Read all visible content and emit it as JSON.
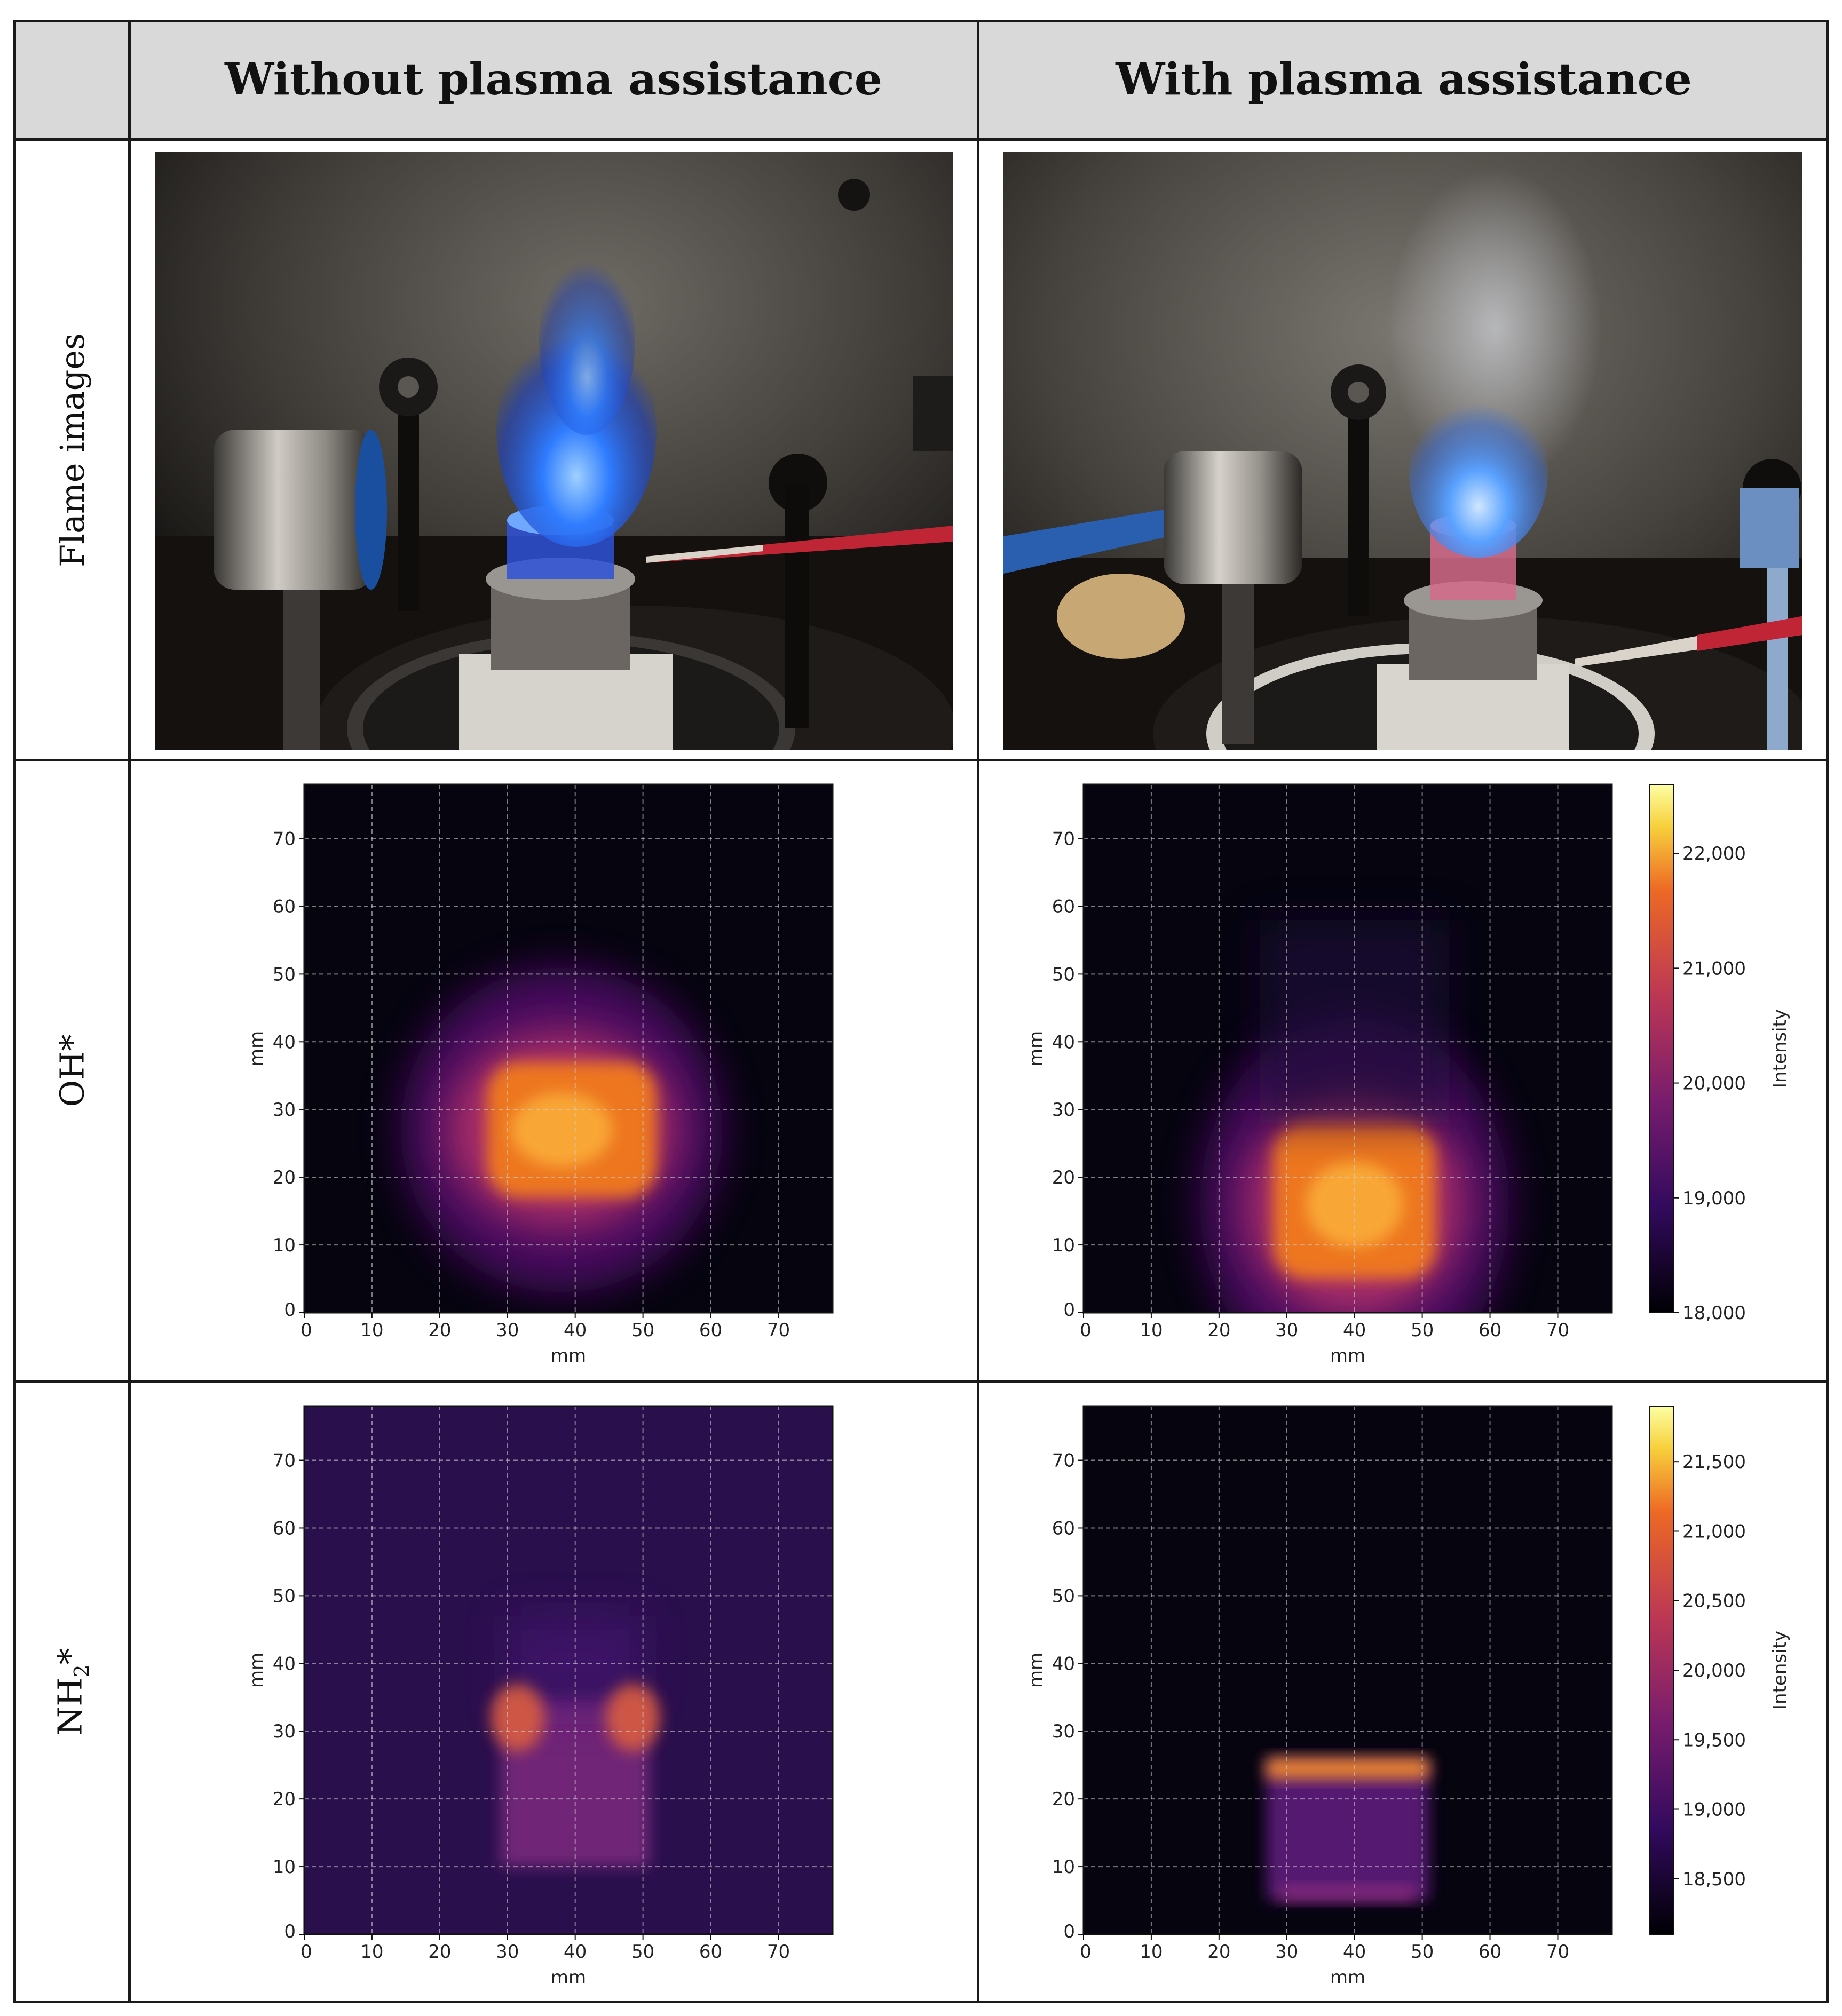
{
  "header": {
    "col_without": "Without plasma assistance",
    "col_with": "With plasma assistance"
  },
  "rows": {
    "flame": "Flame images",
    "oh": "OH*",
    "nh2_main": "NH",
    "nh2_sub": "2",
    "nh2_star": "*"
  },
  "plots": {
    "axis_label": "mm",
    "ticks": [
      "0",
      "10",
      "20",
      "30",
      "40",
      "50",
      "60",
      "70"
    ],
    "colorbar_label": "Intensity",
    "oh_colorbar_ticks": [
      "18,000",
      "19,000",
      "20,000",
      "21,000",
      "22,000"
    ],
    "nh2_colorbar_ticks": [
      "18,500",
      "19,000",
      "19,500",
      "20,000",
      "20,500",
      "21,000",
      "21,500"
    ]
  },
  "chart_data": [
    {
      "type": "heatmap",
      "panel": "OH* without plasma assistance",
      "xlabel": "mm",
      "ylabel": "mm",
      "xlim": [
        0,
        78
      ],
      "ylim": [
        0,
        78
      ],
      "grid": true,
      "emission_center_mm": [
        38,
        27
      ],
      "emission_extent_mm": {
        "x": [
          27,
          52
        ],
        "y": [
          17,
          37
        ]
      }
    },
    {
      "type": "heatmap",
      "panel": "OH* with plasma assistance",
      "xlabel": "mm",
      "ylabel": "mm",
      "xlim": [
        0,
        78
      ],
      "ylim": [
        0,
        78
      ],
      "grid": true,
      "colorbar": {
        "label": "Intensity",
        "min": 18000,
        "max": 22600,
        "ticks": [
          18000,
          19000,
          20000,
          21000,
          22000
        ]
      },
      "emission_center_mm": [
        40,
        16
      ],
      "emission_extent_mm": {
        "x": [
          28,
          52
        ],
        "y": [
          5,
          28
        ]
      }
    },
    {
      "type": "heatmap",
      "panel": "NH2* without plasma assistance",
      "xlabel": "mm",
      "ylabel": "mm",
      "xlim": [
        0,
        78
      ],
      "ylim": [
        0,
        78
      ],
      "grid": true,
      "emission_extent_mm": {
        "x": [
          29,
          51
        ],
        "y": [
          10,
          35
        ]
      }
    },
    {
      "type": "heatmap",
      "panel": "NH2* with plasma assistance",
      "xlabel": "mm",
      "ylabel": "mm",
      "xlim": [
        0,
        78
      ],
      "ylim": [
        0,
        78
      ],
      "grid": true,
      "colorbar": {
        "label": "Intensity",
        "min": 18100,
        "max": 21900,
        "ticks": [
          18500,
          19000,
          19500,
          20000,
          20500,
          21000,
          21500
        ]
      },
      "emission_extent_mm": {
        "x": [
          27,
          51
        ],
        "y": [
          5,
          26
        ]
      }
    }
  ]
}
